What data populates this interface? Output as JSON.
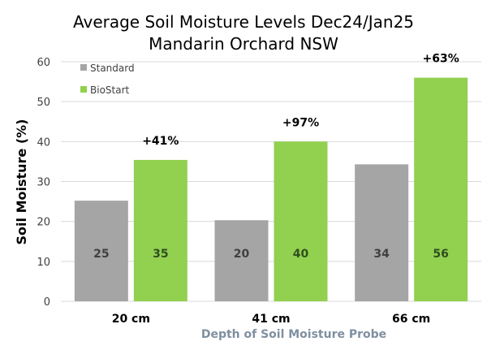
{
  "chart_data": {
    "type": "bar",
    "title": [
      "Average Soil Moisture Levels Dec24/Jan25",
      "Mandarin Orchard NSW"
    ],
    "xlabel": "Depth of Soil Moisture Probe",
    "ylabel": "Soil Moisture (%)",
    "ylim": [
      0,
      60
    ],
    "yticks": [
      "0",
      "10",
      "20",
      "30",
      "40",
      "50",
      "60"
    ],
    "grid": true,
    "legend_position": "top-left",
    "categories": [
      "20 cm",
      "41 cm",
      "66 cm"
    ],
    "series": [
      {
        "name": "Standard",
        "color": "#a5a5a5",
        "values": [
          25.2,
          20.3,
          34.3
        ],
        "labels": [
          "25",
          "20",
          "34"
        ],
        "label_color": "#404040"
      },
      {
        "name": "BioStart",
        "color": "#92d050",
        "values": [
          35.4,
          40.0,
          56.0
        ],
        "labels": [
          "35",
          "40",
          "56"
        ],
        "label_color": "#2f4f1f"
      }
    ],
    "annotations": [
      "+41%",
      "+97%",
      "+63%"
    ]
  }
}
